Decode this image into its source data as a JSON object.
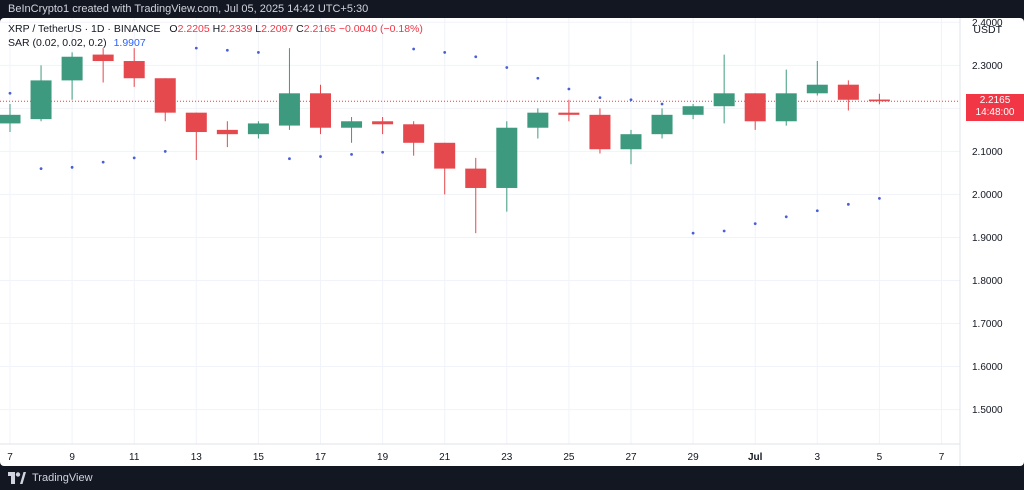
{
  "header": {
    "created_by": "BeInCrypto1 created with TradingView.com, Jul 05, 2025 14:42 UTC+5:30"
  },
  "legend": {
    "symbol": "XRP / TetherUS · 1D · BINANCE",
    "open_label": "O",
    "open": "2.2205",
    "high_label": "H",
    "high": "2.2339",
    "low_label": "L",
    "low": "2.2097",
    "close_label": "C",
    "close": "2.2165",
    "change": "−0.0040 (−0.18%)",
    "indicator": "SAR (0.02, 0.02, 0.2)",
    "indicator_value": "1.9907"
  },
  "currency": "USDT",
  "price_tag": {
    "price": "2.2165",
    "countdown": "14:48:00"
  },
  "footer": {
    "brand": "TradingView"
  },
  "colors": {
    "up": "#3d9a7e",
    "down": "#e5484d",
    "sar": "#4a5fd6",
    "grid": "#f0f3fa",
    "axis_text": "#131722",
    "price_line": "#f23645"
  },
  "chart_data": {
    "type": "candlestick",
    "y_axis": {
      "range": [
        1.42,
        2.41
      ],
      "ticks": [
        "2.4000",
        "2.3000",
        "2.2000",
        "2.1000",
        "2.0000",
        "1.9000",
        "1.8000",
        "1.7000",
        "1.6000",
        "1.5000"
      ]
    },
    "x_axis": {
      "labels": [
        "7",
        "9",
        "11",
        "13",
        "15",
        "17",
        "19",
        "21",
        "23",
        "25",
        "27",
        "29",
        "Jul",
        "3",
        "5",
        "7"
      ]
    },
    "last_price": 2.2165,
    "candles": [
      {
        "date": "Jun 7",
        "open": 2.165,
        "high": 2.21,
        "low": 2.145,
        "close": 2.185
      },
      {
        "date": "Jun 8",
        "open": 2.175,
        "high": 2.3,
        "low": 2.17,
        "close": 2.265
      },
      {
        "date": "Jun 9",
        "open": 2.265,
        "high": 2.33,
        "low": 2.22,
        "close": 2.32
      },
      {
        "date": "Jun 10",
        "open": 2.325,
        "high": 2.34,
        "low": 2.26,
        "close": 2.31
      },
      {
        "date": "Jun 11",
        "open": 2.31,
        "high": 2.34,
        "low": 2.25,
        "close": 2.27
      },
      {
        "date": "Jun 12",
        "open": 2.27,
        "high": 2.27,
        "low": 2.17,
        "close": 2.19
      },
      {
        "date": "Jun 13",
        "open": 2.19,
        "high": 2.19,
        "low": 2.08,
        "close": 2.145
      },
      {
        "date": "Jun 14",
        "open": 2.15,
        "high": 2.17,
        "low": 2.11,
        "close": 2.14
      },
      {
        "date": "Jun 15",
        "open": 2.14,
        "high": 2.17,
        "low": 2.13,
        "close": 2.165
      },
      {
        "date": "Jun 16",
        "open": 2.16,
        "high": 2.34,
        "low": 2.15,
        "close": 2.235
      },
      {
        "date": "Jun 17",
        "open": 2.235,
        "high": 2.255,
        "low": 2.14,
        "close": 2.155
      },
      {
        "date": "Jun 18",
        "open": 2.155,
        "high": 2.18,
        "low": 2.12,
        "close": 2.17
      },
      {
        "date": "Jun 19",
        "open": 2.17,
        "high": 2.18,
        "low": 2.14,
        "close": 2.163
      },
      {
        "date": "Jun 20",
        "open": 2.163,
        "high": 2.17,
        "low": 2.09,
        "close": 2.12
      },
      {
        "date": "Jun 21",
        "open": 2.12,
        "high": 2.12,
        "low": 2.0,
        "close": 2.06
      },
      {
        "date": "Jun 22",
        "open": 2.06,
        "high": 2.085,
        "low": 1.91,
        "close": 2.015
      },
      {
        "date": "Jun 23",
        "open": 2.015,
        "high": 2.17,
        "low": 1.96,
        "close": 2.155
      },
      {
        "date": "Jun 24",
        "open": 2.155,
        "high": 2.2,
        "low": 2.13,
        "close": 2.19
      },
      {
        "date": "Jun 25",
        "open": 2.19,
        "high": 2.22,
        "low": 2.17,
        "close": 2.185
      },
      {
        "date": "Jun 26",
        "open": 2.185,
        "high": 2.2,
        "low": 2.095,
        "close": 2.105
      },
      {
        "date": "Jun 27",
        "open": 2.105,
        "high": 2.15,
        "low": 2.07,
        "close": 2.14
      },
      {
        "date": "Jun 28",
        "open": 2.14,
        "high": 2.2,
        "low": 2.13,
        "close": 2.185
      },
      {
        "date": "Jun 29",
        "open": 2.185,
        "high": 2.21,
        "low": 2.175,
        "close": 2.205
      },
      {
        "date": "Jun 30",
        "open": 2.205,
        "high": 2.325,
        "low": 2.165,
        "close": 2.235
      },
      {
        "date": "Jul 1",
        "open": 2.235,
        "high": 2.235,
        "low": 2.15,
        "close": 2.17
      },
      {
        "date": "Jul 2",
        "open": 2.17,
        "high": 2.29,
        "low": 2.16,
        "close": 2.235
      },
      {
        "date": "Jul 3",
        "open": 2.235,
        "high": 2.31,
        "low": 2.23,
        "close": 2.255
      },
      {
        "date": "Jul 4",
        "open": 2.255,
        "high": 2.265,
        "low": 2.195,
        "close": 2.22
      },
      {
        "date": "Jul 5",
        "open": 2.2205,
        "high": 2.2339,
        "low": 2.2097,
        "close": 2.2165
      }
    ],
    "sar": [
      {
        "date": "Jun 7",
        "value": 2.235
      },
      {
        "date": "Jun 8",
        "value": 2.06
      },
      {
        "date": "Jun 9",
        "value": 2.063
      },
      {
        "date": "Jun 10",
        "value": 2.075
      },
      {
        "date": "Jun 11",
        "value": 2.085
      },
      {
        "date": "Jun 12",
        "value": 2.1
      },
      {
        "date": "Jun 13",
        "value": 2.34
      },
      {
        "date": "Jun 14",
        "value": 2.335
      },
      {
        "date": "Jun 15",
        "value": 2.33
      },
      {
        "date": "Jun 16",
        "value": 2.083
      },
      {
        "date": "Jun 17",
        "value": 2.088
      },
      {
        "date": "Jun 18",
        "value": 2.093
      },
      {
        "date": "Jun 19",
        "value": 2.098
      },
      {
        "date": "Jun 20",
        "value": 2.338
      },
      {
        "date": "Jun 21",
        "value": 2.33
      },
      {
        "date": "Jun 22",
        "value": 2.32
      },
      {
        "date": "Jun 23",
        "value": 2.295
      },
      {
        "date": "Jun 24",
        "value": 2.27
      },
      {
        "date": "Jun 25",
        "value": 2.245
      },
      {
        "date": "Jun 26",
        "value": 2.225
      },
      {
        "date": "Jun 27",
        "value": 2.22
      },
      {
        "date": "Jun 28",
        "value": 2.21
      },
      {
        "date": "Jun 29",
        "value": 1.91
      },
      {
        "date": "Jun 30",
        "value": 1.915
      },
      {
        "date": "Jul 1",
        "value": 1.932
      },
      {
        "date": "Jul 2",
        "value": 1.948
      },
      {
        "date": "Jul 3",
        "value": 1.962
      },
      {
        "date": "Jul 4",
        "value": 1.977
      },
      {
        "date": "Jul 5",
        "value": 1.9907
      }
    ],
    "grid": true
  }
}
